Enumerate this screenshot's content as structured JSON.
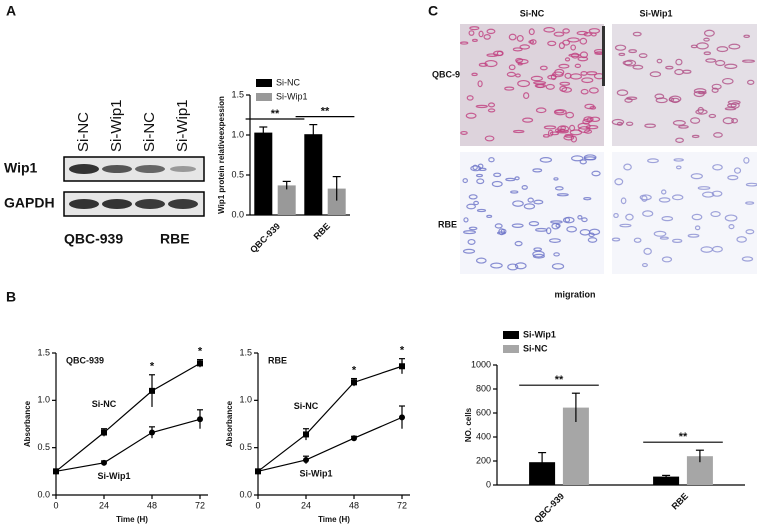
{
  "figure": {
    "panel_labels": [
      "A",
      "B",
      "C"
    ],
    "blot": {
      "lanes": [
        "Si-NC",
        "Si-Wip1",
        "Si-NC",
        "Si-Wip1"
      ],
      "rows": [
        "Wip1",
        "GAPDH"
      ],
      "groups": [
        "QBC-939",
        "RBE"
      ]
    },
    "micrographs": {
      "columns": [
        "Si-NC",
        "Si-Wip1"
      ],
      "rows": [
        "QBC-939",
        "RBE"
      ],
      "caption": "migration"
    }
  },
  "chart_data": [
    {
      "type": "bar",
      "ylabel": "Wip1 protein relativeexpession",
      "categories": [
        "QBC-939",
        "RBE"
      ],
      "series": [
        {
          "name": "Si-NC",
          "color": "#000000",
          "values": [
            1.03,
            1.01
          ],
          "errors": [
            0.07,
            0.12
          ]
        },
        {
          "name": "Si-Wip1",
          "color": "#999999",
          "values": [
            0.37,
            0.33
          ],
          "errors": [
            0.05,
            0.15
          ]
        }
      ],
      "significance": [
        "**",
        "**"
      ],
      "ylim": [
        0,
        1.5
      ],
      "yticks": [
        {
          "value": 0,
          "label": "0.0"
        },
        {
          "value": 0.5,
          "label": "0.5"
        },
        {
          "value": 1,
          "label": "1.0"
        },
        {
          "value": 1.5,
          "label": "1.5"
        }
      ],
      "legend": "top-left"
    },
    {
      "type": "line",
      "title": "QBC-939",
      "xlabel": "Time (H)",
      "ylabel": "Absorbance",
      "x": [
        0,
        24,
        48,
        72
      ],
      "series": [
        {
          "name": "Si-NC",
          "color": "#000000",
          "marker": "square",
          "values": [
            0.25,
            0.66,
            1.1,
            1.39
          ],
          "errors": [
            0.02,
            0.04,
            0.17,
            0.04
          ]
        },
        {
          "name": "Si-Wip1",
          "color": "#000000",
          "marker": "circle",
          "values": [
            0.25,
            0.34,
            0.66,
            0.8
          ],
          "errors": [
            0.02,
            0.02,
            0.06,
            0.1
          ]
        }
      ],
      "significance": [
        null,
        null,
        "*",
        "*"
      ],
      "xlim": [
        0,
        76
      ],
      "xticks": [
        0,
        24,
        48,
        72
      ],
      "ylim": [
        0,
        1.5
      ],
      "yticks": [
        {
          "value": 0,
          "label": "0.0"
        },
        {
          "value": 0.5,
          "label": "0.5"
        },
        {
          "value": 1,
          "label": "1.0"
        },
        {
          "value": 1.5,
          "label": "1.5"
        }
      ],
      "legend": "inline"
    },
    {
      "type": "line",
      "title": "RBE",
      "xlabel": "Time (H)",
      "ylabel": "Absorbance",
      "x": [
        0,
        24,
        48,
        72
      ],
      "series": [
        {
          "name": "Si-NC",
          "color": "#000000",
          "marker": "square",
          "values": [
            0.25,
            0.64,
            1.19,
            1.36
          ],
          "errors": [
            0.02,
            0.06,
            0.04,
            0.08
          ]
        },
        {
          "name": "Si-Wip1",
          "color": "#000000",
          "marker": "circle",
          "values": [
            0.25,
            0.37,
            0.6,
            0.82
          ],
          "errors": [
            0.02,
            0.04,
            0.02,
            0.12
          ]
        }
      ],
      "significance": [
        null,
        null,
        "*",
        "*"
      ],
      "xlim": [
        0,
        76
      ],
      "xticks": [
        0,
        24,
        48,
        72
      ],
      "ylim": [
        0,
        1.5
      ],
      "yticks": [
        {
          "value": 0,
          "label": "0.0"
        },
        {
          "value": 0.5,
          "label": "0.5"
        },
        {
          "value": 1,
          "label": "1.0"
        },
        {
          "value": 1.5,
          "label": "1.5"
        }
      ],
      "legend": "inline"
    },
    {
      "type": "bar",
      "ylabel": "NO. cells",
      "categories": [
        "QBC-939",
        "RBE"
      ],
      "series": [
        {
          "name": "Si-Wip1",
          "color": "#000000",
          "values": [
            190,
            70
          ],
          "errors": [
            80,
            10
          ]
        },
        {
          "name": "Si-NC",
          "color": "#a6a6a6",
          "values": [
            645,
            240
          ],
          "errors": [
            120,
            50
          ]
        }
      ],
      "significance": [
        "**",
        "**"
      ],
      "ylim": [
        0,
        1000
      ],
      "yticks": [
        0,
        200,
        400,
        600,
        800,
        1000
      ],
      "legend": "top-left"
    }
  ]
}
